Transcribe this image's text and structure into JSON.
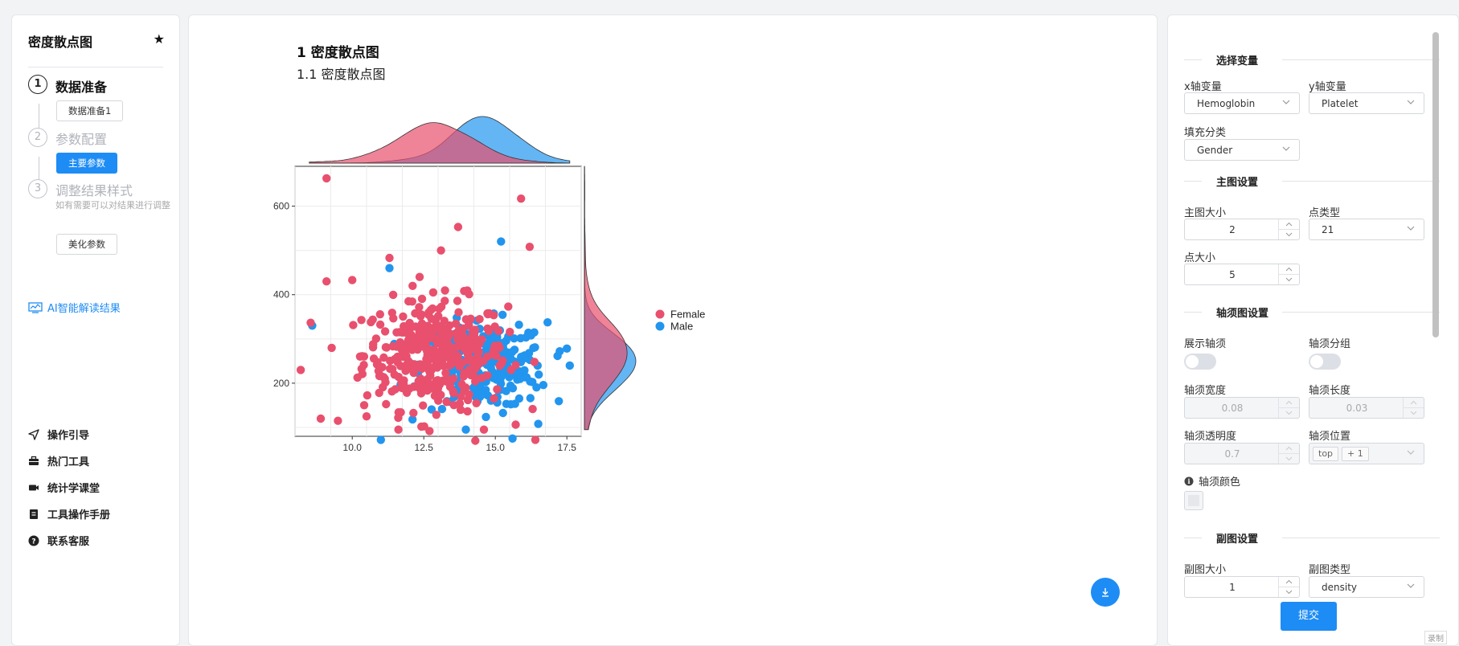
{
  "sidebar": {
    "title": "密度散点图",
    "steps": [
      {
        "num": "1",
        "label": "数据准备",
        "button": "数据准备1"
      },
      {
        "num": "2",
        "label": "参数配置",
        "button": "主要参数"
      },
      {
        "num": "3",
        "label": "调整结果样式",
        "desc": "如有需要可以对结果进行调整",
        "button": "美化参数"
      }
    ],
    "ai_link": "AI智能解读结果",
    "nav": [
      {
        "label": "操作引导",
        "icon": "send-icon"
      },
      {
        "label": "热门工具",
        "icon": "toolbox-icon"
      },
      {
        "label": "统计学课堂",
        "icon": "video-icon"
      },
      {
        "label": "工具操作手册",
        "icon": "manual-icon"
      },
      {
        "label": "联系客服",
        "icon": "help-icon"
      }
    ]
  },
  "main": {
    "heading": "1 密度散点图",
    "subheading": "1.1 密度散点图"
  },
  "chart_data": {
    "type": "scatter",
    "xlabel": "",
    "ylabel": "",
    "x_ticks": [
      "10.0",
      "12.5",
      "15.0",
      "17.5"
    ],
    "y_ticks": [
      "200",
      "400",
      "600"
    ],
    "xlim": [
      8.0,
      18.0
    ],
    "ylim": [
      80,
      690
    ],
    "grid": true,
    "legend": {
      "placement": "right",
      "entries": [
        "Female",
        "Male"
      ]
    },
    "series": [
      {
        "name": "Female",
        "color": "#e8506e",
        "x_mean": 12.9,
        "x_sd": 1.25,
        "y_mean": 265,
        "y_sd": 62,
        "n": 380,
        "points": [
          [
            9.1,
            663
          ],
          [
            15.9,
            617
          ],
          [
            13.7,
            553
          ],
          [
            13.1,
            500
          ],
          [
            16.2,
            508
          ],
          [
            11.3,
            483
          ],
          [
            10.0,
            433
          ],
          [
            9.1,
            430
          ],
          [
            8.2,
            230
          ],
          [
            8.9,
            120
          ],
          [
            9.5,
            115
          ],
          [
            12.7,
            92
          ],
          [
            14.3,
            70
          ],
          [
            16.4,
            72
          ],
          [
            14.6,
            95
          ],
          [
            10.5,
            125
          ]
        ]
      },
      {
        "name": "Male",
        "color": "#2295ee",
        "x_mean": 14.6,
        "x_sd": 1.1,
        "y_mean": 240,
        "y_sd": 48,
        "n": 260,
        "points": [
          [
            15.2,
            520
          ],
          [
            11.3,
            460
          ],
          [
            8.6,
            330
          ],
          [
            17.6,
            240
          ],
          [
            11.0,
            72
          ],
          [
            15.6,
            75
          ],
          [
            16.5,
            108
          ]
        ]
      }
    ],
    "marginal": {
      "type": "density",
      "top": "x",
      "right": "y"
    }
  },
  "panel": {
    "sections": {
      "vars": "选择变量",
      "main_plot": "主图设置",
      "rug": "轴须图设置",
      "sub_plot": "副图设置"
    },
    "fields": {
      "x_var_label": "x轴变量",
      "x_var": "Hemoglobin",
      "y_var_label": "y轴变量",
      "y_var": "Platelet",
      "fill_label": "填充分类",
      "fill": "Gender",
      "main_size_label": "主图大小",
      "main_size": "2",
      "point_type_label": "点类型",
      "point_type": "21",
      "point_size_label": "点大小",
      "point_size": "5",
      "show_rug_label": "展示轴须",
      "rug_group_label": "轴须分组",
      "rug_width_label": "轴须宽度",
      "rug_width": "0.08",
      "rug_length_label": "轴须长度",
      "rug_length": "0.03",
      "rug_alpha_label": "轴须透明度",
      "rug_alpha": "0.7",
      "rug_pos_label": "轴须位置",
      "rug_pos_tag": "top",
      "rug_pos_more": "+ 1",
      "rug_color_label": "轴须颜色",
      "sub_size_label": "副图大小",
      "sub_size": "1",
      "sub_type_label": "副图类型",
      "sub_type": "density"
    },
    "submit": "提交",
    "record": "录制"
  }
}
